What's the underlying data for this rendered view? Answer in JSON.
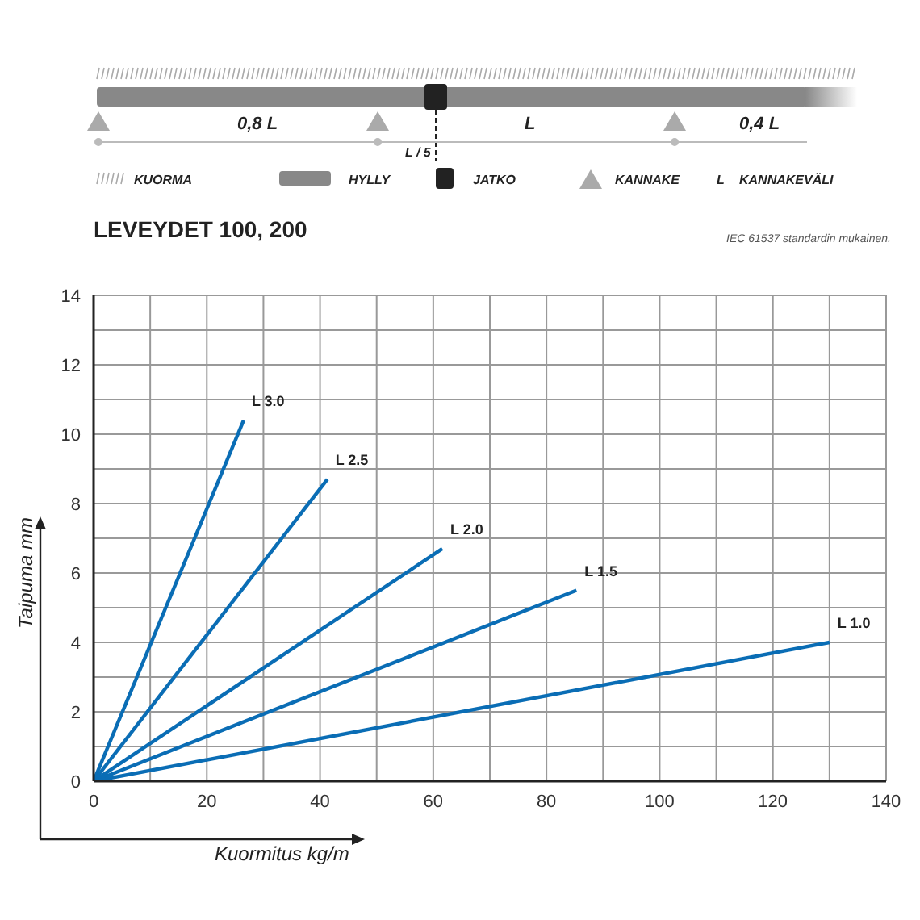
{
  "chart_data": {
    "type": "line",
    "title": "LEVEYDET 100, 200",
    "xlabel": "Kuormitus kg/m",
    "ylabel": "Taipuma mm",
    "annotations": [
      "IEC 61537 standardin mukainen.",
      "0,8 L",
      "L",
      "0,4 L",
      "L / 5",
      "KUORMA",
      "HYLLY",
      "JATKO",
      "KANNAKE",
      "L",
      "KANNAKEVÄLI"
    ],
    "series": [
      {
        "name": "L 3.0",
        "color": "#0a6db5",
        "x": [
          0,
          26.5
        ],
        "values": [
          0,
          10.4
        ]
      },
      {
        "name": "L 2.5",
        "color": "#0a6db5",
        "x": [
          0,
          41.3
        ],
        "values": [
          0,
          8.7
        ]
      },
      {
        "name": "L 2.0",
        "color": "#0a6db5",
        "x": [
          0,
          61.6
        ],
        "values": [
          0,
          6.7
        ]
      },
      {
        "name": "L 1.5",
        "color": "#0a6db5",
        "x": [
          0,
          85.3
        ],
        "values": [
          0,
          5.5
        ]
      },
      {
        "name": "L 1.0",
        "color": "#0a6db5",
        "x": [
          0,
          130
        ],
        "values": [
          0,
          4.0
        ]
      }
    ],
    "xlim": [
      0,
      140
    ],
    "xticks": [
      0,
      {
        "value": 10,
        "label": null
      },
      20,
      {
        "value": 30,
        "label": null
      },
      40,
      {
        "value": 50,
        "label": null
      },
      60,
      {
        "value": 70,
        "label": null
      },
      80,
      {
        "value": 90,
        "label": null
      },
      100,
      {
        "value": 110,
        "label": null
      },
      120,
      {
        "value": 130,
        "label": null
      },
      140
    ],
    "ylim": [
      0,
      14
    ],
    "yticks": [
      0,
      {
        "value": 1,
        "label": null
      },
      2,
      {
        "value": 3,
        "label": null
      },
      4,
      {
        "value": 5,
        "label": null
      },
      6,
      {
        "value": 7,
        "label": null
      },
      8,
      {
        "value": 9,
        "label": null
      },
      10,
      {
        "value": 11,
        "label": null
      },
      12,
      {
        "value": 13,
        "label": null
      },
      14
    ],
    "grid": true,
    "marker": "none",
    "line_style": "solid"
  }
}
